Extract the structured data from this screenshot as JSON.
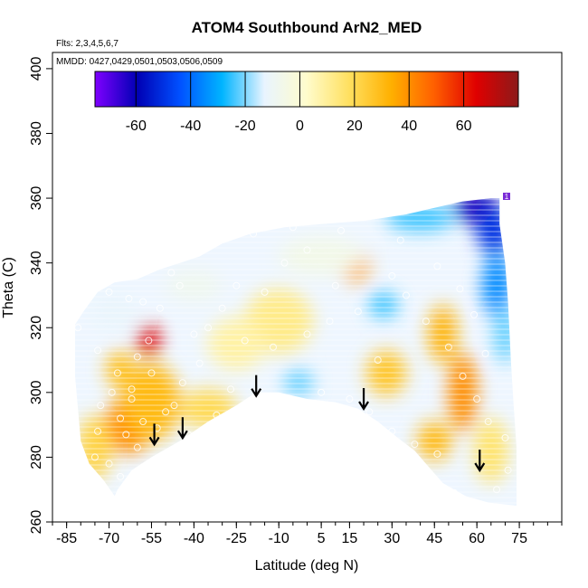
{
  "chart_data": {
    "type": "heatmap",
    "title": "ATOM4 Southbound ArN2_MED",
    "flights_label": "Flts: 2,3,4,5,6,7",
    "dates_label": "MMDD: 0427,0429,0501,0503,0506,0509",
    "xlabel": "Latitude (deg N)",
    "ylabel": "Theta (C)",
    "xlim": [
      -90,
      90
    ],
    "ylim": [
      260,
      405
    ],
    "x_ticks": [
      -85,
      -70,
      -55,
      -40,
      -25,
      -10,
      5,
      15,
      30,
      45,
      60,
      75
    ],
    "x_tick_labels": [
      "-85",
      "-70",
      "-55",
      "-40",
      "-25",
      "-10",
      "5",
      "15",
      "30",
      "45",
      "60",
      "75"
    ],
    "y_ticks": [
      260,
      280,
      300,
      320,
      340,
      360,
      380,
      400
    ],
    "y_tick_labels": [
      "260",
      "280",
      "300",
      "320",
      "340",
      "360",
      "380",
      "400"
    ],
    "colorbar": {
      "min": -75,
      "max": 80,
      "ticks": [
        -60,
        -40,
        -20,
        0,
        20,
        40,
        60
      ],
      "tick_labels": [
        "-60",
        "-40",
        "-20",
        "0",
        "20",
        "40",
        "60"
      ],
      "colors": [
        "#7f00ff",
        "#0000b4",
        "#0050ff",
        "#00b4ff",
        "#e8f4ff",
        "#fffccc",
        "#ffe060",
        "#ffb000",
        "#ff6000",
        "#e00000",
        "#8c1a1a"
      ]
    },
    "field": {
      "boundary_top": [
        [
          -82,
          321
        ],
        [
          -79,
          325
        ],
        [
          -74,
          331
        ],
        [
          -68,
          334
        ],
        [
          -60,
          335
        ],
        [
          -52,
          338
        ],
        [
          -45,
          340
        ],
        [
          -38,
          342
        ],
        [
          -30,
          346
        ],
        [
          -20,
          349
        ],
        [
          -8,
          351
        ],
        [
          5,
          352
        ],
        [
          20,
          353
        ],
        [
          35,
          355
        ],
        [
          45,
          357
        ],
        [
          55,
          359
        ],
        [
          65,
          360
        ],
        [
          68,
          360
        ]
      ],
      "boundary_right": [
        [
          68,
          360
        ],
        [
          68,
          352
        ],
        [
          70,
          340
        ],
        [
          71,
          328
        ],
        [
          72,
          310
        ],
        [
          73,
          296
        ],
        [
          74,
          283
        ],
        [
          74,
          265
        ]
      ],
      "boundary_bottom": [
        [
          74,
          265
        ],
        [
          64,
          266
        ],
        [
          56,
          268
        ],
        [
          48,
          272
        ],
        [
          44,
          276
        ],
        [
          38,
          282
        ],
        [
          32,
          286
        ],
        [
          25,
          291
        ],
        [
          18,
          295
        ],
        [
          10,
          297
        ],
        [
          0,
          298
        ],
        [
          -10,
          300
        ],
        [
          -18,
          300
        ],
        [
          -25,
          296
        ],
        [
          -35,
          291
        ],
        [
          -45,
          285
        ],
        [
          -55,
          280
        ],
        [
          -62,
          276
        ],
        [
          -67,
          270
        ],
        [
          -68,
          268
        ]
      ],
      "boundary_left": [
        [
          -68,
          268
        ],
        [
          -72,
          273
        ],
        [
          -77,
          278
        ],
        [
          -80,
          285
        ],
        [
          -81,
          295
        ],
        [
          -82,
          305
        ],
        [
          -82,
          321
        ]
      ],
      "hotspots": [
        {
          "lat": -56,
          "theta": 316,
          "value": 65,
          "rlat": 4,
          "rtheta": 5
        },
        {
          "lat": -63,
          "theta": 290,
          "value": 40,
          "rlat": 8,
          "rtheta": 9
        },
        {
          "lat": -55,
          "theta": 297,
          "value": 30,
          "rlat": 10,
          "rtheta": 12
        },
        {
          "lat": -66,
          "theta": 307,
          "value": 28,
          "rlat": 5,
          "rtheta": 6
        },
        {
          "lat": -75,
          "theta": 283,
          "value": 22,
          "rlat": 6,
          "rtheta": 10
        },
        {
          "lat": -35,
          "theta": 295,
          "value": 20,
          "rlat": 10,
          "rtheta": 6
        },
        {
          "lat": 17,
          "theta": 339,
          "value": 35,
          "rlat": 5,
          "rtheta": 5
        },
        {
          "lat": 28,
          "theta": 306,
          "value": 26,
          "rlat": 7,
          "rtheta": 7
        },
        {
          "lat": 48,
          "theta": 318,
          "value": 32,
          "rlat": 5,
          "rtheta": 9
        },
        {
          "lat": 55,
          "theta": 300,
          "value": 40,
          "rlat": 5,
          "rtheta": 12
        },
        {
          "lat": 45,
          "theta": 285,
          "value": 30,
          "rlat": 6,
          "rtheta": 6
        },
        {
          "lat": 65,
          "theta": 282,
          "value": 16,
          "rlat": 6,
          "rtheta": 10
        },
        {
          "lat": -10,
          "theta": 322,
          "value": 12,
          "rlat": 12,
          "rtheta": 10
        },
        {
          "lat": -25,
          "theta": 315,
          "value": 8,
          "rlat": 10,
          "rtheta": 8
        },
        {
          "lat": 60,
          "theta": 357,
          "value": -62,
          "rlat": 8,
          "rtheta": 5
        },
        {
          "lat": 66,
          "theta": 350,
          "value": -50,
          "rlat": 6,
          "rtheta": 7
        },
        {
          "lat": 67,
          "theta": 333,
          "value": -35,
          "rlat": 5,
          "rtheta": 10
        },
        {
          "lat": 70,
          "theta": 318,
          "value": -22,
          "rlat": 4,
          "rtheta": 9
        },
        {
          "lat": 40,
          "theta": 354,
          "value": -25,
          "rlat": 12,
          "rtheta": 4
        },
        {
          "lat": 27,
          "theta": 327,
          "value": -25,
          "rlat": 5,
          "rtheta": 4
        },
        {
          "lat": -3,
          "theta": 303,
          "value": -22,
          "rlat": 5,
          "rtheta": 4
        },
        {
          "lat": -68,
          "theta": 325,
          "value": -12,
          "rlat": 8,
          "rtheta": 6
        },
        {
          "lat": -40,
          "theta": 333,
          "value": -8,
          "rlat": 10,
          "rtheta": 5
        },
        {
          "lat": 5,
          "theta": 342,
          "value": -6,
          "rlat": 15,
          "rtheta": 6
        }
      ]
    },
    "observations": [
      [
        -81,
        320
      ],
      [
        -74,
        313
      ],
      [
        -70,
        331
      ],
      [
        -63,
        329
      ],
      [
        -58,
        328
      ],
      [
        -52,
        326
      ],
      [
        -45,
        333
      ],
      [
        -48,
        337
      ],
      [
        -60,
        311
      ],
      [
        -67,
        306
      ],
      [
        -62,
        298
      ],
      [
        -66,
        292
      ],
      [
        -58,
        291
      ],
      [
        -53,
        289
      ],
      [
        -64,
        287
      ],
      [
        -70,
        278
      ],
      [
        -66,
        274
      ],
      [
        -60,
        283
      ],
      [
        -74,
        288
      ],
      [
        -75,
        280
      ],
      [
        -58,
        277
      ],
      [
        -50,
        294
      ],
      [
        -44,
        303
      ],
      [
        -38,
        309
      ],
      [
        -32,
        293
      ],
      [
        -27,
        301
      ],
      [
        -22,
        316
      ],
      [
        -35,
        320
      ],
      [
        -15,
        331
      ],
      [
        -8,
        340
      ],
      [
        0,
        344
      ],
      [
        10,
        333
      ],
      [
        18,
        325
      ],
      [
        25,
        310
      ],
      [
        -12,
        314
      ],
      [
        0,
        318
      ],
      [
        8,
        322
      ],
      [
        15,
        298
      ],
      [
        35,
        330
      ],
      [
        42,
        322
      ],
      [
        50,
        314
      ],
      [
        55,
        305
      ],
      [
        60,
        298
      ],
      [
        64,
        291
      ],
      [
        70,
        286
      ],
      [
        71,
        276
      ],
      [
        67,
        270
      ],
      [
        52,
        269
      ],
      [
        46,
        281
      ],
      [
        38,
        284
      ],
      [
        30,
        288
      ],
      [
        22,
        294
      ],
      [
        -19,
        349
      ],
      [
        -5,
        351
      ],
      [
        12,
        350
      ],
      [
        33,
        347
      ],
      [
        46,
        339
      ],
      [
        54,
        332
      ],
      [
        59,
        324
      ],
      [
        63,
        312
      ],
      [
        -56,
        316
      ],
      [
        -55,
        306
      ],
      [
        -47,
        296
      ],
      [
        -42,
        287
      ],
      [
        -62,
        301
      ],
      [
        -69,
        300
      ],
      [
        -73,
        296
      ],
      [
        -40,
        318
      ],
      [
        -30,
        326
      ],
      [
        -25,
        333
      ],
      [
        5,
        300
      ],
      [
        30,
        336
      ]
    ],
    "arrows": [
      {
        "lat": -54,
        "theta": 287
      },
      {
        "lat": -44,
        "theta": 289
      },
      {
        "lat": -18,
        "theta": 302
      },
      {
        "lat": 20,
        "theta": 298
      },
      {
        "lat": 61,
        "theta": 279
      }
    ],
    "corner_label": "1"
  }
}
